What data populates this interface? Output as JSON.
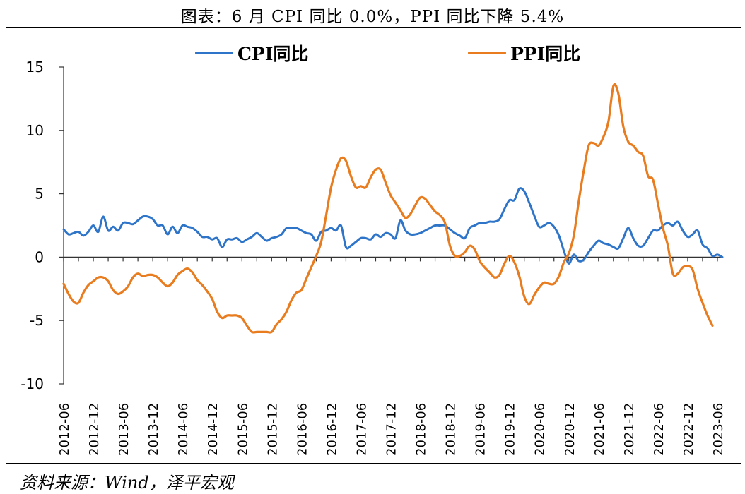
{
  "title": "图表：6 月 CPI 同比 0.0%，PPI 同比下降 5.4%",
  "source": "资料来源：Wind，泽平宏观",
  "colors": {
    "cpi": "#2E75C9",
    "ppi": "#E87C1E",
    "axis": "#333333"
  },
  "chart_data": {
    "type": "line",
    "ylim": [
      -10,
      15
    ],
    "yticks": [
      "15",
      "10",
      "5",
      "0",
      "-5",
      "-10"
    ],
    "ytick_values": [
      15,
      10,
      5,
      0,
      -5,
      -10
    ],
    "xlabels": [
      "2012-06",
      "2012-12",
      "2013-06",
      "2013-12",
      "2014-06",
      "2014-12",
      "2015-06",
      "2015-12",
      "2016-06",
      "2016-12",
      "2017-06",
      "2017-12",
      "2018-06",
      "2018-12",
      "2019-06",
      "2019-12",
      "2020-06",
      "2020-12",
      "2021-06",
      "2021-12",
      "2022-06",
      "2022-12",
      "2023-06"
    ],
    "legend_placement": "top",
    "grid": false,
    "series": [
      {
        "name": "CPI同比",
        "values": [
          2.2,
          1.8,
          1.9,
          2.0,
          1.7,
          2.0,
          2.5,
          2.0,
          3.2,
          2.1,
          2.4,
          2.1,
          2.7,
          2.7,
          2.6,
          2.9,
          3.2,
          3.2,
          3.0,
          2.5,
          2.5,
          1.8,
          2.4,
          1.9,
          2.5,
          2.4,
          2.3,
          2.0,
          1.6,
          1.6,
          1.4,
          1.5,
          0.8,
          1.4,
          1.4,
          1.5,
          1.2,
          1.4,
          1.6,
          1.9,
          1.6,
          1.3,
          1.5,
          1.6,
          1.8,
          2.3,
          2.3,
          2.3,
          2.1,
          1.9,
          1.8,
          1.3,
          2.0,
          2.1,
          2.3,
          2.1,
          2.5,
          0.8,
          0.9,
          1.2,
          1.5,
          1.5,
          1.4,
          1.8,
          1.6,
          1.9,
          1.8,
          1.5,
          2.9,
          2.1,
          1.8,
          1.8,
          1.9,
          2.1,
          2.3,
          2.5,
          2.5,
          2.5,
          2.2,
          1.9,
          1.7,
          1.5,
          2.3,
          2.5,
          2.7,
          2.7,
          2.8,
          2.8,
          3.0,
          3.8,
          4.5,
          4.5,
          5.4,
          5.2,
          4.3,
          3.3,
          2.4,
          2.5,
          2.7,
          2.4,
          1.7,
          0.5,
          -0.5,
          0.2,
          -0.3,
          -0.2,
          0.4,
          0.9,
          1.3,
          1.1,
          1.0,
          0.8,
          0.7,
          1.5,
          2.3,
          1.5,
          0.9,
          0.9,
          1.5,
          2.1,
          2.1,
          2.5,
          2.7,
          2.5,
          2.8,
          2.1,
          1.6,
          1.8,
          2.1,
          1.0,
          0.7,
          0.1,
          0.2,
          0.0
        ]
      },
      {
        "name": "PPI同比",
        "values": [
          -2.1,
          -2.9,
          -3.5,
          -3.6,
          -2.8,
          -2.2,
          -1.9,
          -1.6,
          -1.6,
          -1.9,
          -2.6,
          -2.9,
          -2.7,
          -2.3,
          -1.6,
          -1.3,
          -1.5,
          -1.4,
          -1.4,
          -1.6,
          -2.0,
          -2.3,
          -2.0,
          -1.4,
          -1.1,
          -0.9,
          -1.2,
          -1.8,
          -2.2,
          -2.7,
          -3.3,
          -4.3,
          -4.8,
          -4.6,
          -4.6,
          -4.6,
          -4.8,
          -5.4,
          -5.9,
          -5.9,
          -5.9,
          -5.9,
          -5.9,
          -5.3,
          -4.9,
          -4.3,
          -3.4,
          -2.8,
          -2.6,
          -1.7,
          -0.8,
          0.1,
          1.2,
          3.3,
          5.5,
          6.9,
          7.8,
          7.6,
          6.4,
          5.5,
          5.6,
          5.5,
          6.3,
          6.9,
          6.9,
          5.9,
          4.9,
          4.3,
          3.7,
          3.1,
          3.4,
          4.1,
          4.7,
          4.6,
          4.1,
          3.6,
          3.3,
          2.7,
          0.9,
          0.1,
          0.1,
          0.4,
          0.9,
          0.6,
          -0.3,
          -0.8,
          -1.2,
          -1.6,
          -1.4,
          -0.5,
          0.1,
          -0.4,
          -1.5,
          -3.1,
          -3.7,
          -3.0,
          -2.4,
          -2.0,
          -2.1,
          -2.1,
          -1.5,
          -0.4,
          0.3,
          1.7,
          4.4,
          6.8,
          8.8,
          9.0,
          8.8,
          9.5,
          10.7,
          13.5,
          12.9,
          10.3,
          9.1,
          8.8,
          8.3,
          8.0,
          6.4,
          6.1,
          4.2,
          2.3,
          0.9,
          -1.3,
          -1.3,
          -0.8,
          -0.7,
          -1.0,
          -2.5,
          -3.6,
          -4.6,
          -5.4
        ]
      }
    ]
  }
}
